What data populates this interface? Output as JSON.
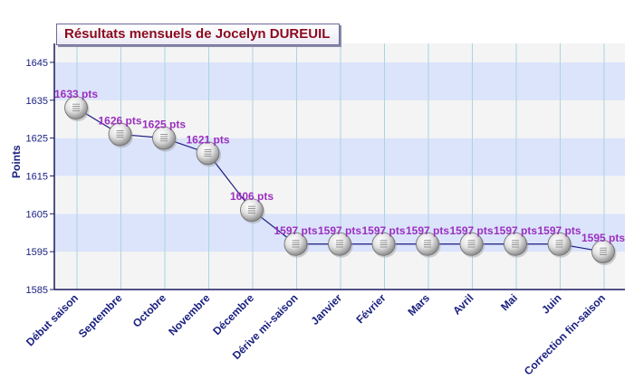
{
  "chart_data": {
    "type": "line",
    "title": "Résultats mensuels de Jocelyn DUREUIL",
    "ylabel": "Points",
    "xlabel": "",
    "ylim": [
      1585,
      1650
    ],
    "yticks": [
      "1585",
      "1595",
      "1605",
      "1615",
      "1625",
      "1635",
      "1645"
    ],
    "grid": true,
    "categories": [
      "Début saison",
      "Septembre",
      "Octobre",
      "Novembre",
      "Décembre",
      "Dérive mi-saison",
      "Janvier",
      "Février",
      "Mars",
      "Avril",
      "Mai",
      "Juin",
      "Correction fin-saison"
    ],
    "values": [
      1633,
      1626,
      1625,
      1621,
      1606,
      1597,
      1597,
      1597,
      1597,
      1597,
      1597,
      1597,
      1595
    ],
    "data_labels": [
      "1633 pts",
      "1626 pts",
      "1625 pts",
      "1621 pts",
      "1606 pts",
      "1597 pts",
      "1597 pts",
      "1597 pts",
      "1597 pts",
      "1597 pts",
      "1597 pts",
      "1597 pts",
      "1595 pts"
    ],
    "colors": {
      "line": "#1a1a80",
      "label": "#9b2fbf",
      "axis_text": "#1a2080",
      "band_dark": "#dbe4fb",
      "band_light": "#f4f4f4",
      "grid": "#a9d5e2",
      "title": "#8b0a1e"
    }
  }
}
